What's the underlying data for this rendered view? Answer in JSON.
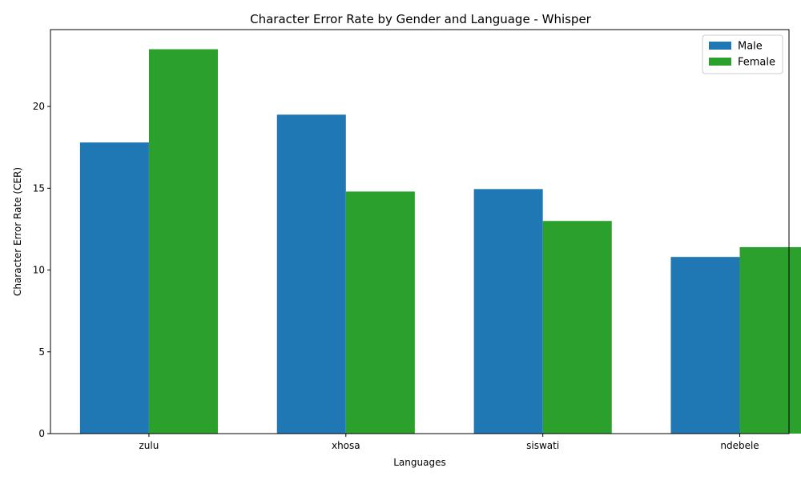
{
  "chart_data": {
    "type": "bar",
    "title": "Character Error Rate by Gender and Language - Whisper",
    "xlabel": "Languages",
    "ylabel": "Character Error Rate (CER)",
    "categories": [
      "zulu",
      "xhosa",
      "siswati",
      "ndebele"
    ],
    "series": [
      {
        "name": "Male",
        "color": "#1f77b4",
        "values": [
          17.8,
          19.5,
          14.95,
          10.8
        ]
      },
      {
        "name": "Female",
        "color": "#2ca02c",
        "values": [
          23.5,
          14.8,
          13.0,
          11.4
        ]
      }
    ],
    "ylim": [
      0,
      24.7
    ],
    "yticks": [
      0,
      5,
      10,
      15,
      20
    ],
    "grid": false,
    "legend_position": "top-right"
  }
}
